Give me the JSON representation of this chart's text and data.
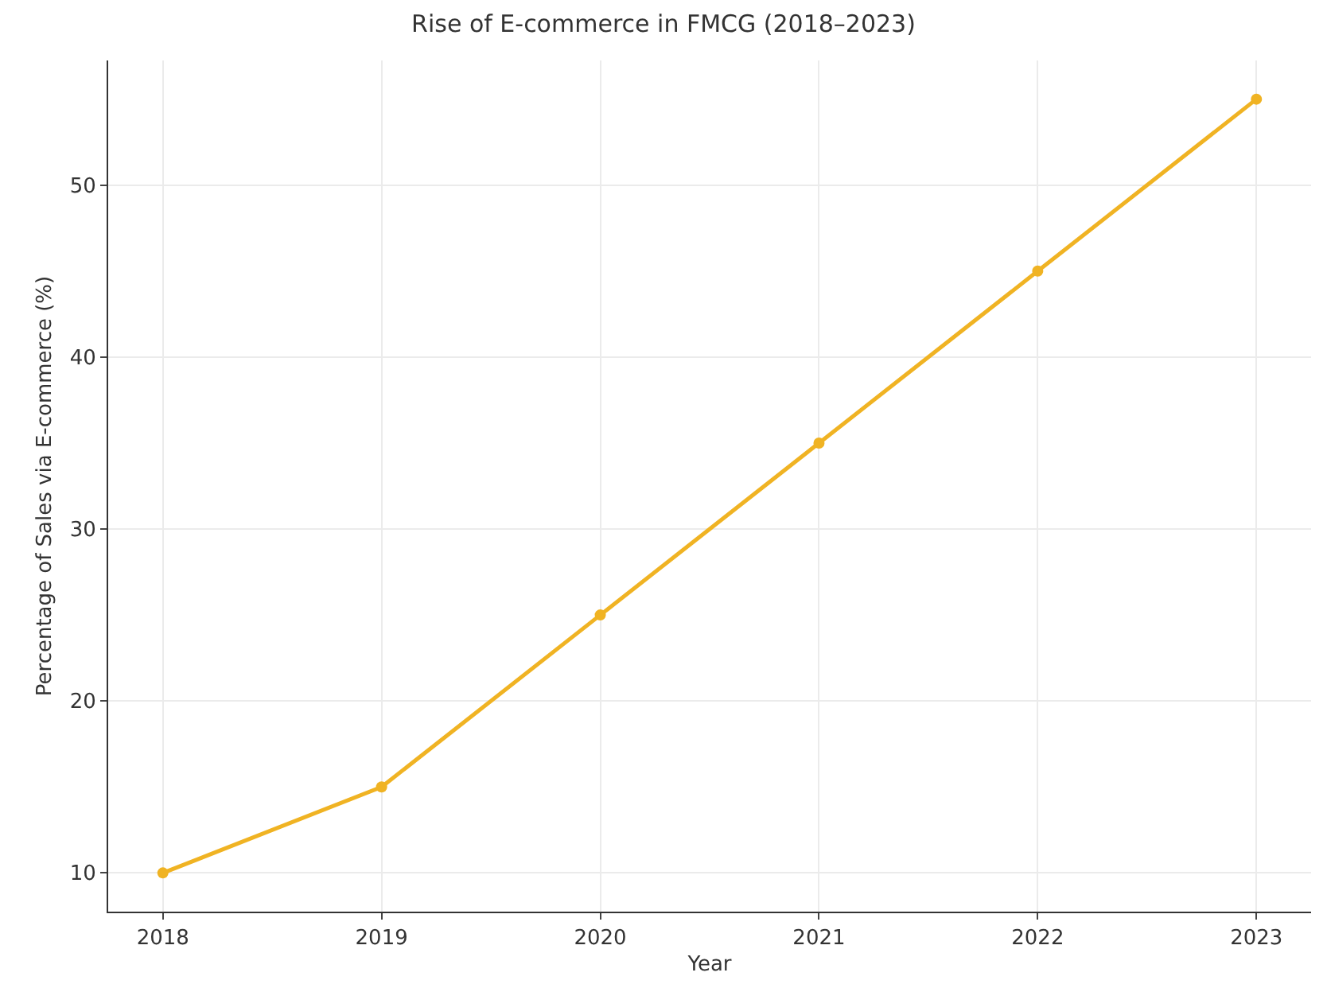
{
  "chart_data": {
    "type": "line",
    "title": "Rise of E-commerce in FMCG (2018–2023)",
    "xlabel": "Year",
    "ylabel": "Percentage of Sales via E-commerce (%)",
    "x": [
      2018,
      2019,
      2020,
      2021,
      2022,
      2023
    ],
    "series": [
      {
        "color": "#f0b323",
        "values": [
          10,
          15,
          25,
          35,
          45,
          55
        ]
      }
    ],
    "xlim": [
      2017.75,
      2023.25
    ],
    "xticks": [
      2018,
      2019,
      2020,
      2021,
      2022,
      2023
    ],
    "ylim": [
      7.75,
      57.25
    ],
    "yticks": [
      10,
      20,
      30,
      40,
      50
    ],
    "grid": true,
    "marker": "circle",
    "line_style": "solid"
  }
}
